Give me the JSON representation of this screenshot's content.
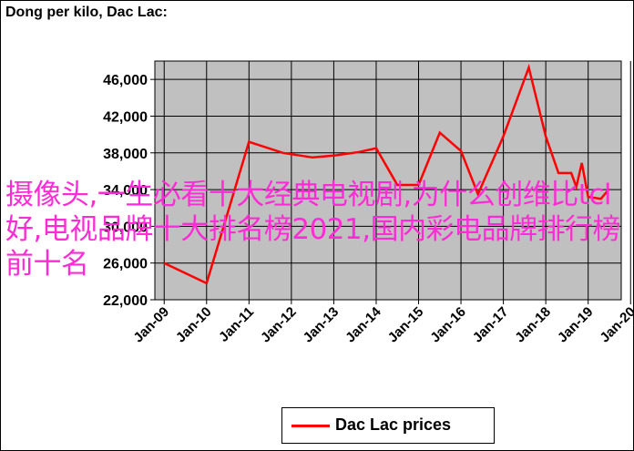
{
  "chart_data": {
    "type": "line",
    "title": "Dong per kilo, Dac Lac:",
    "xlabel": "",
    "ylabel": "",
    "ylim": [
      22000,
      48000
    ],
    "yticks": [
      "22,000",
      "26,000",
      "30,000",
      "34,000",
      "38,000",
      "42,000",
      "46,000"
    ],
    "xticks": [
      "Jan-09",
      "Jan-10",
      "Jan-11",
      "Jan-12",
      "Jan-13",
      "Jan-14",
      "Jan-15",
      "Jan-16",
      "Jan-17",
      "Jan-18",
      "Jan-19",
      "Jan-20"
    ],
    "grid": true,
    "legend_position": "bottom-center",
    "series": [
      {
        "name": "Dac Lac prices",
        "color": "#ff0000",
        "x": [
          2009.0,
          2010.0,
          2011.0,
          2011.8,
          2012.5,
          2013.0,
          2013.6,
          2014.0,
          2014.5,
          2015.0,
          2015.5,
          2016.0,
          2016.4,
          2017.0,
          2017.6,
          2018.0,
          2018.3,
          2018.6,
          2018.72,
          2018.85,
          2019.0,
          2019.3,
          2019.5
        ],
        "y": [
          26000,
          23800,
          39200,
          38000,
          37500,
          37700,
          38100,
          38500,
          34500,
          34500,
          40200,
          38200,
          33500,
          39800,
          47300,
          39800,
          35800,
          35800,
          34300,
          36900,
          33200,
          33000,
          34100
        ]
      }
    ]
  },
  "overlay": {
    "text": "摄像头,一生必看十大经典电视剧,为什么创维比tcl好,电视品牌十大排名榜2021,国内彩电品牌排行榜前十名"
  },
  "colors": {
    "plot_bg": "#c0c0c0",
    "line": "#ff0000",
    "overlay": "#ff2bd6"
  }
}
